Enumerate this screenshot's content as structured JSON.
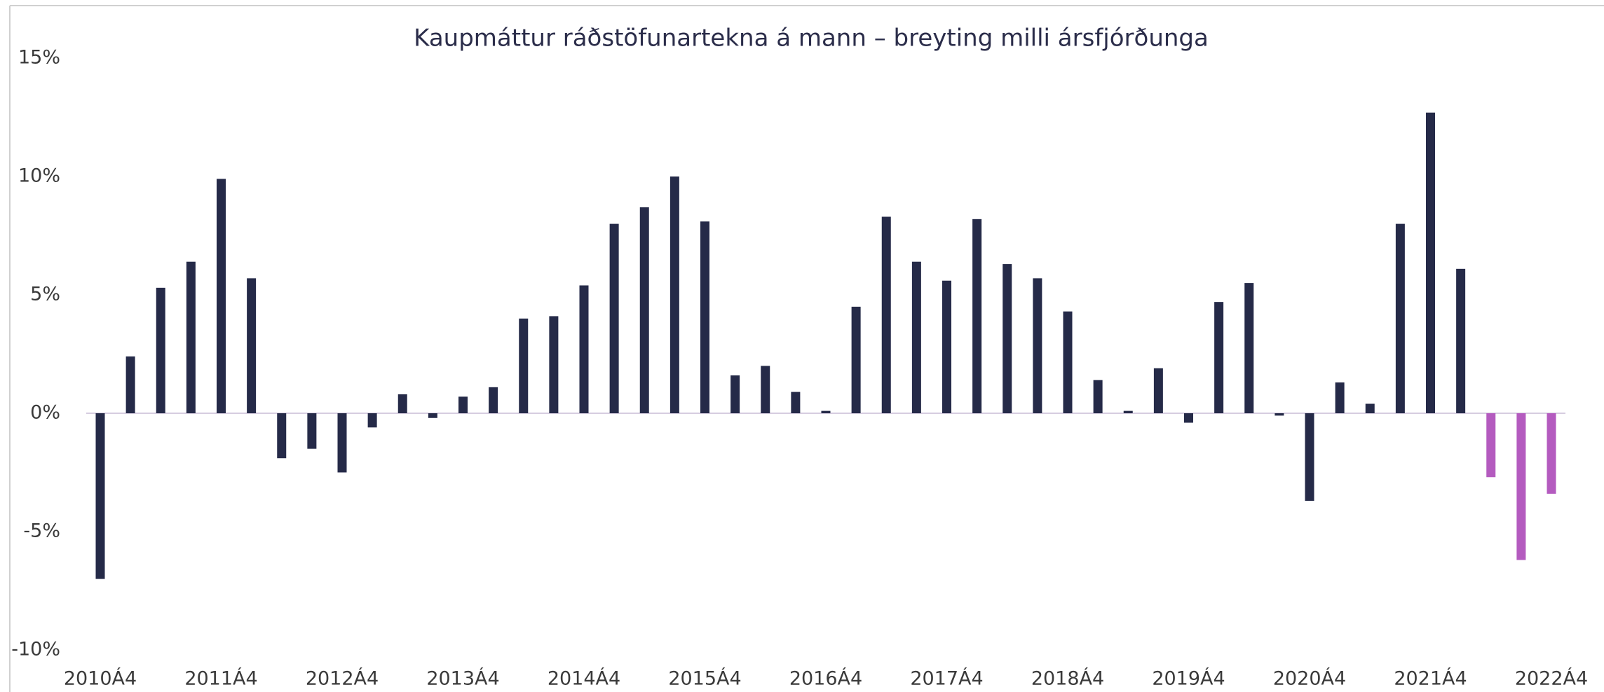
{
  "chart_data": {
    "type": "bar",
    "title": "Kaupmáttur ráðstöfunartekna á mann – breyting milli ársfjórðunga",
    "categories": [
      "2010Á4",
      null,
      null,
      null,
      "2011Á4",
      null,
      null,
      null,
      "2012Á4",
      null,
      null,
      null,
      "2013Á4",
      null,
      null,
      null,
      "2014Á4",
      null,
      null,
      null,
      "2015Á4",
      null,
      null,
      null,
      "2016Á4",
      null,
      null,
      null,
      "2017Á4",
      null,
      null,
      null,
      "2018Á4",
      null,
      null,
      null,
      "2019Á4",
      null,
      null,
      null,
      "2020Á4",
      null,
      null,
      null,
      "2021Á4",
      null,
      null,
      null,
      "2022Á4"
    ],
    "values": [
      -7.0,
      2.4,
      5.3,
      6.4,
      9.9,
      5.7,
      -1.9,
      -1.5,
      -2.5,
      -0.6,
      0.8,
      -0.2,
      0.7,
      1.1,
      4.0,
      4.1,
      5.4,
      8.0,
      8.7,
      10.0,
      8.1,
      1.6,
      2.0,
      0.9,
      0.1,
      4.5,
      8.3,
      6.4,
      5.6,
      8.2,
      6.3,
      5.7,
      4.3,
      1.4,
      0.1,
      1.9,
      -0.4,
      4.7,
      5.5,
      -0.1,
      -3.7,
      1.3,
      0.4,
      8.0,
      12.7,
      6.1,
      -2.7,
      -6.2,
      -3.4
    ],
    "colors": [
      "#252a48",
      "#252a48",
      "#252a48",
      "#252a48",
      "#252a48",
      "#252a48",
      "#252a48",
      "#252a48",
      "#252a48",
      "#252a48",
      "#252a48",
      "#252a48",
      "#252a48",
      "#252a48",
      "#252a48",
      "#252a48",
      "#252a48",
      "#252a48",
      "#252a48",
      "#252a48",
      "#252a48",
      "#252a48",
      "#252a48",
      "#252a48",
      "#252a48",
      "#252a48",
      "#252a48",
      "#252a48",
      "#252a48",
      "#252a48",
      "#252a48",
      "#252a48",
      "#252a48",
      "#252a48",
      "#252a48",
      "#252a48",
      "#252a48",
      "#252a48",
      "#252a48",
      "#252a48",
      "#252a48",
      "#252a48",
      "#252a48",
      "#252a48",
      "#252a48",
      "#252a48",
      "#b45bbf",
      "#b45bbf",
      "#b45bbf"
    ],
    "ylim": [
      -10,
      15
    ],
    "yticks": [
      {
        "value": -10,
        "label": "-10%"
      },
      {
        "value": -5,
        "label": "-5%"
      },
      {
        "value": 0,
        "label": "0%"
      },
      {
        "value": 5,
        "label": "5%"
      },
      {
        "value": 10,
        "label": "10%"
      },
      {
        "value": 15,
        "label": "15%"
      }
    ],
    "grid": false
  }
}
